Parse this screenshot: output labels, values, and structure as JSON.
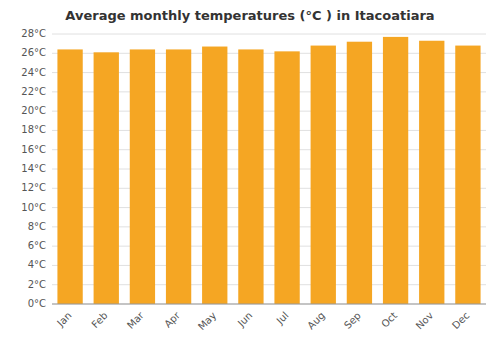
{
  "chart_data": {
    "type": "bar",
    "title": "Average monthly temperatures (°C ) in Itacoatiara",
    "categories": [
      "Jan",
      "Feb",
      "Mar",
      "Apr",
      "May",
      "Jun",
      "Jul",
      "Aug",
      "Sep",
      "Oct",
      "Nov",
      "Dec"
    ],
    "values": [
      26.4,
      26.1,
      26.4,
      26.4,
      26.7,
      26.4,
      26.2,
      26.8,
      27.2,
      27.7,
      27.3,
      26.8
    ],
    "color": "#F5A623",
    "ylim": [
      0,
      28
    ],
    "yticks": [
      {
        "value": 0,
        "label": "0°C"
      },
      {
        "value": 2,
        "label": "2°C"
      },
      {
        "value": 4,
        "label": "4°C"
      },
      {
        "value": 6,
        "label": "6°C"
      },
      {
        "value": 8,
        "label": "8°C"
      },
      {
        "value": 10,
        "label": "10°C"
      },
      {
        "value": 12,
        "label": "12°C"
      },
      {
        "value": 14,
        "label": "14°C"
      },
      {
        "value": 16,
        "label": "16°C"
      },
      {
        "value": 18,
        "label": "18°C"
      },
      {
        "value": 20,
        "label": "20°C"
      },
      {
        "value": 22,
        "label": "22°C"
      },
      {
        "value": 24,
        "label": "24°C"
      },
      {
        "value": 26,
        "label": "26°C"
      },
      {
        "value": 28,
        "label": "28°C"
      }
    ],
    "grid": true
  }
}
